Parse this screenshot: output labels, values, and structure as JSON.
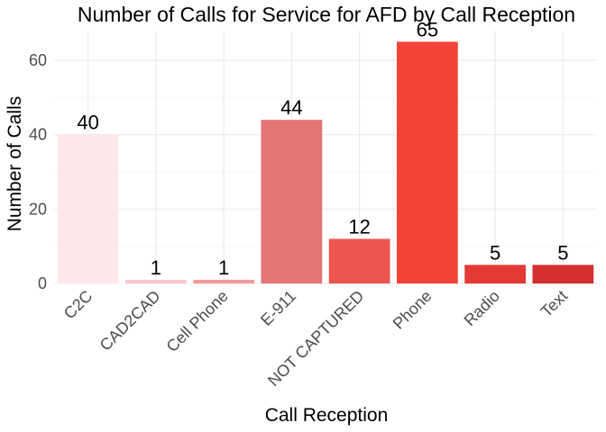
{
  "chart_data": {
    "type": "bar",
    "title": "Number of Calls for Service for AFD by Call Reception",
    "xlabel": "Call Reception",
    "ylabel": "Number of Calls",
    "categories": [
      "C2C",
      "CAD2CAD",
      "Cell Phone",
      "E-911",
      "NOT CAPTURED",
      "Phone",
      "Radio",
      "Text"
    ],
    "values": [
      40,
      1,
      1,
      44,
      12,
      65,
      5,
      5
    ],
    "data_labels": [
      "40",
      "1",
      "1",
      "44",
      "12",
      "65",
      "5",
      "5"
    ],
    "bar_colors": [
      "#fde7ea",
      "#fbc8cc",
      "#f39a98",
      "#e47474",
      "#ee5450",
      "#f44336",
      "#e53935",
      "#d32f2f"
    ],
    "yticks": [
      0,
      20,
      40,
      60
    ],
    "ytick_labels": [
      "0",
      "20",
      "40",
      "60"
    ],
    "ylim": [
      0,
      68
    ],
    "grid": true,
    "legend": "none"
  }
}
